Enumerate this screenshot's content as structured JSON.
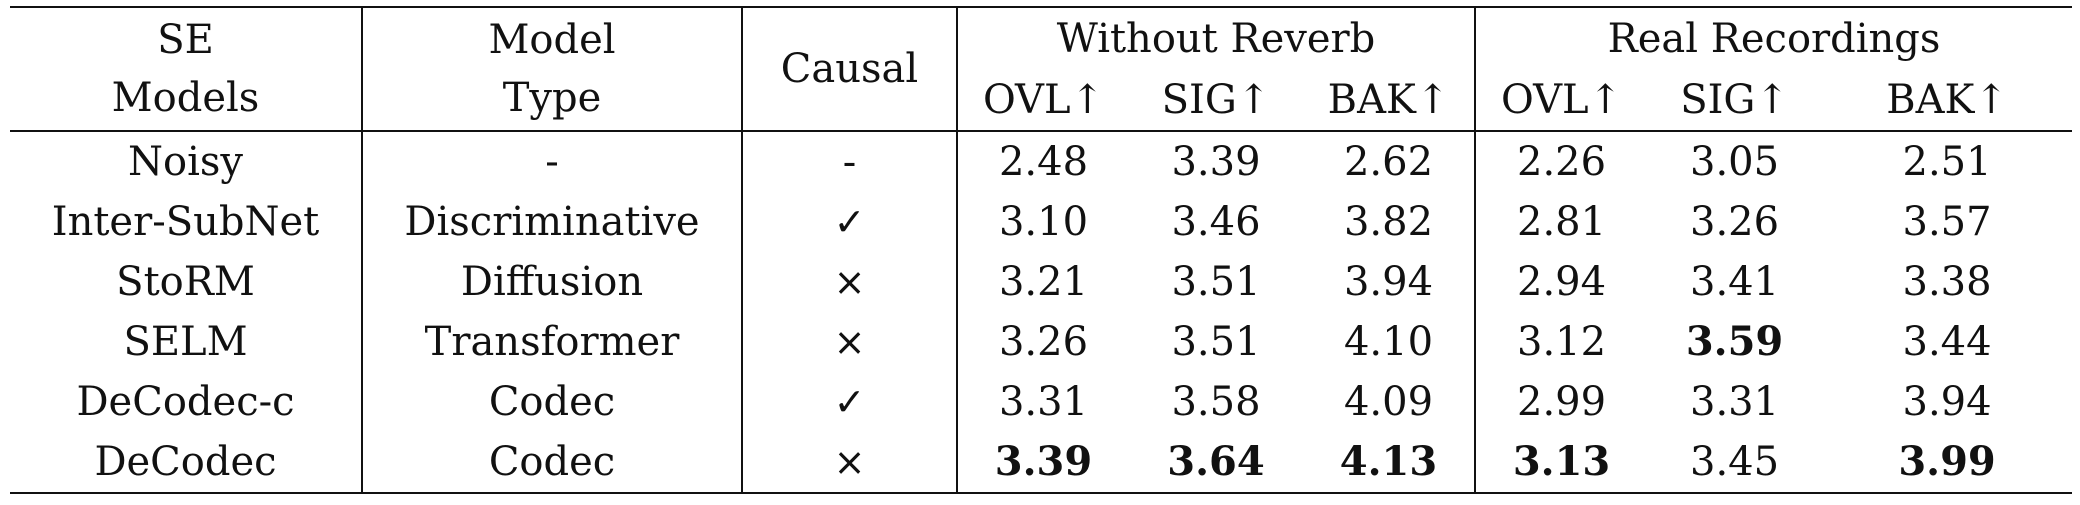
{
  "header": {
    "se_models": [
      "SE",
      "Models"
    ],
    "model_type": [
      "Model",
      "Type"
    ],
    "causal": "Causal",
    "group_without_reverb": "Without Reverb",
    "group_real_recordings": "Real Recordings",
    "metrics": [
      "OVL↑",
      "SIG↑",
      "BAK↑",
      "OVL↑",
      "SIG↑",
      "BAK↑"
    ]
  },
  "rows": [
    {
      "model": "Noisy",
      "type": "-",
      "causal": "-",
      "values": [
        "2.48",
        "3.39",
        "2.62",
        "2.26",
        "3.05",
        "2.51"
      ],
      "bold": [
        false,
        false,
        false,
        false,
        false,
        false
      ]
    },
    {
      "model": "Inter-SubNet",
      "type": "Discriminative",
      "causal": "✓",
      "values": [
        "3.10",
        "3.46",
        "3.82",
        "2.81",
        "3.26",
        "3.57"
      ],
      "bold": [
        false,
        false,
        false,
        false,
        false,
        false
      ]
    },
    {
      "model": "StoRM",
      "type": "Diffusion",
      "causal": "×",
      "values": [
        "3.21",
        "3.51",
        "3.94",
        "2.94",
        "3.41",
        "3.38"
      ],
      "bold": [
        false,
        false,
        false,
        false,
        false,
        false
      ]
    },
    {
      "model": "SELM",
      "type": "Transformer",
      "causal": "×",
      "values": [
        "3.26",
        "3.51",
        "4.10",
        "3.12",
        "3.59",
        "3.44"
      ],
      "bold": [
        false,
        false,
        false,
        false,
        true,
        false
      ]
    },
    {
      "model": "DeCodec-c",
      "type": "Codec",
      "causal": "✓",
      "values": [
        "3.31",
        "3.58",
        "4.09",
        "2.99",
        "3.31",
        "3.94"
      ],
      "bold": [
        false,
        false,
        false,
        false,
        false,
        false
      ]
    },
    {
      "model": "DeCodec",
      "type": "Codec",
      "causal": "×",
      "values": [
        "3.39",
        "3.64",
        "4.13",
        "3.13",
        "3.45",
        "3.99"
      ],
      "bold": [
        true,
        true,
        true,
        true,
        false,
        true
      ]
    }
  ]
}
